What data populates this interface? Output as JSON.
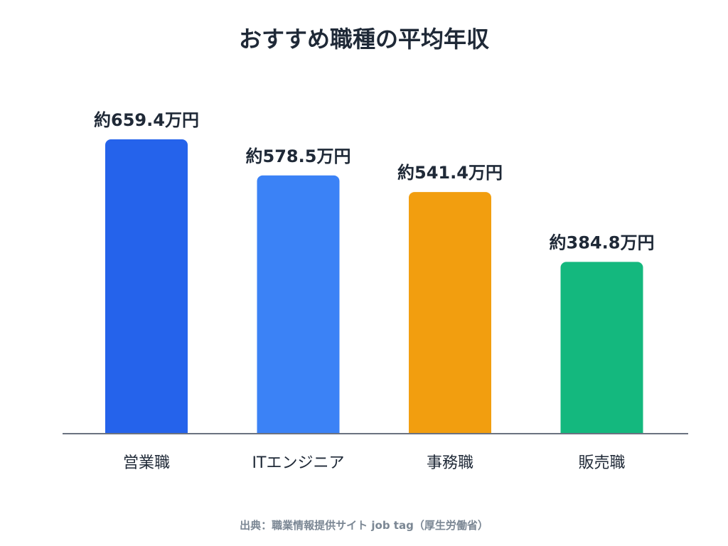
{
  "chart_data": {
    "type": "bar",
    "title": "おすすめ職種の平均年収",
    "categories": [
      "営業職",
      "ITエンジニア",
      "事務職",
      "販売職"
    ],
    "values": [
      659.4,
      578.5,
      541.4,
      384.8
    ],
    "data_labels": [
      "約659.4万円",
      "約578.5万円",
      "約541.4万円",
      "約384.8万円"
    ],
    "unit": "万円",
    "colors": [
      "#2563eb",
      "#3b82f6",
      "#f29e0f",
      "#14b87e"
    ],
    "ylim": [
      0,
      800
    ],
    "grid": false,
    "legend": "none"
  },
  "source": "出典：職業情報提供サイト job tag（厚生労働省）",
  "colors": {
    "title": "#1f2937",
    "label": "#1f2937",
    "axis": "#6b7280",
    "source": "#7b8794"
  }
}
